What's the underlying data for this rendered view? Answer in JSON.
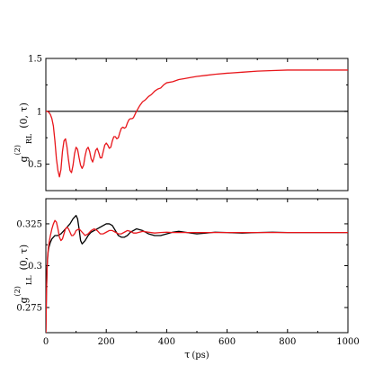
{
  "chart_data": [
    {
      "type": "line",
      "panel": "top",
      "ylabel": {
        "base": "g",
        "sup": "(2)",
        "sub": "RL",
        "args": "(0, τ)"
      },
      "xlim": [
        0,
        1000
      ],
      "ylim": [
        0.25,
        1.5
      ],
      "yticks": [
        0.5,
        1,
        1.5
      ],
      "ytick_labels": [
        "0.5",
        "1",
        "1.5"
      ],
      "xticks": [
        0,
        200,
        400,
        600,
        800,
        1000
      ],
      "grid": false,
      "reference_line": {
        "y": 1,
        "color": "#000000"
      },
      "series": [
        {
          "color": "#e8161b",
          "x": [
            0,
            5,
            10,
            15,
            20,
            25,
            30,
            35,
            40,
            45,
            50,
            55,
            60,
            65,
            70,
            75,
            80,
            85,
            90,
            95,
            100,
            105,
            110,
            115,
            120,
            125,
            130,
            135,
            140,
            145,
            150,
            155,
            160,
            165,
            170,
            175,
            180,
            185,
            190,
            195,
            200,
            205,
            210,
            215,
            220,
            225,
            230,
            235,
            240,
            245,
            250,
            255,
            260,
            265,
            270,
            275,
            280,
            285,
            290,
            295,
            300,
            310,
            320,
            330,
            340,
            350,
            360,
            370,
            380,
            390,
            400,
            420,
            440,
            460,
            480,
            500,
            530,
            560,
            600,
            650,
            700,
            750,
            800,
            850,
            900,
            950,
            1000
          ],
          "y": [
            1.0,
            1.0,
            0.99,
            0.97,
            0.93,
            0.86,
            0.72,
            0.55,
            0.44,
            0.38,
            0.45,
            0.62,
            0.72,
            0.74,
            0.66,
            0.54,
            0.44,
            0.42,
            0.49,
            0.6,
            0.66,
            0.64,
            0.56,
            0.49,
            0.46,
            0.49,
            0.58,
            0.64,
            0.66,
            0.62,
            0.55,
            0.52,
            0.57,
            0.63,
            0.65,
            0.61,
            0.56,
            0.56,
            0.62,
            0.68,
            0.7,
            0.68,
            0.65,
            0.66,
            0.72,
            0.76,
            0.76,
            0.74,
            0.75,
            0.8,
            0.84,
            0.85,
            0.84,
            0.85,
            0.89,
            0.92,
            0.93,
            0.93,
            0.94,
            0.97,
            1.0,
            1.05,
            1.09,
            1.11,
            1.14,
            1.16,
            1.19,
            1.21,
            1.22,
            1.25,
            1.27,
            1.28,
            1.3,
            1.31,
            1.32,
            1.33,
            1.34,
            1.35,
            1.36,
            1.37,
            1.38,
            1.385,
            1.39,
            1.39,
            1.39,
            1.39,
            1.39
          ]
        }
      ]
    },
    {
      "type": "line",
      "panel": "bottom",
      "xlabel": {
        "base": "τ",
        "unit": "(ps)"
      },
      "ylabel": {
        "base": "g",
        "sup": "(2)",
        "sub": "LL",
        "args": "(0, τ)"
      },
      "xlim": [
        0,
        1000
      ],
      "ylim": [
        0.26,
        0.34
      ],
      "yticks": [
        0.275,
        0.3,
        0.325
      ],
      "ytick_labels": [
        "0.275",
        "0.3",
        "0.325"
      ],
      "xticks": [
        0,
        200,
        400,
        600,
        800,
        1000
      ],
      "xtick_labels": [
        "0",
        "200",
        "400",
        "600",
        "800",
        "1000"
      ],
      "grid": false,
      "series": [
        {
          "color": "#000000",
          "x": [
            0,
            2,
            4,
            6,
            8,
            10,
            15,
            20,
            25,
            30,
            40,
            50,
            60,
            70,
            80,
            90,
            100,
            105,
            110,
            115,
            120,
            130,
            140,
            150,
            160,
            170,
            180,
            190,
            200,
            210,
            220,
            230,
            240,
            250,
            260,
            270,
            280,
            290,
            300,
            320,
            340,
            360,
            380,
            400,
            420,
            440,
            460,
            480,
            500,
            530,
            560,
            600,
            650,
            700,
            750,
            800,
            850,
            900,
            950,
            1000
          ],
          "y": [
            0.261,
            0.285,
            0.298,
            0.305,
            0.309,
            0.311,
            0.314,
            0.316,
            0.317,
            0.318,
            0.318,
            0.319,
            0.321,
            0.323,
            0.325,
            0.328,
            0.33,
            0.328,
            0.322,
            0.315,
            0.313,
            0.315,
            0.318,
            0.32,
            0.321,
            0.322,
            0.323,
            0.324,
            0.325,
            0.325,
            0.324,
            0.321,
            0.318,
            0.317,
            0.317,
            0.318,
            0.32,
            0.321,
            0.322,
            0.321,
            0.319,
            0.318,
            0.318,
            0.319,
            0.32,
            0.3205,
            0.32,
            0.3195,
            0.319,
            0.3195,
            0.32,
            0.3198,
            0.3195,
            0.3198,
            0.32,
            0.3198,
            0.3198,
            0.3198,
            0.3198,
            0.3198
          ]
        },
        {
          "color": "#e8161b",
          "x": [
            0,
            2,
            4,
            6,
            8,
            10,
            15,
            20,
            25,
            30,
            35,
            40,
            45,
            50,
            55,
            60,
            65,
            70,
            75,
            80,
            85,
            90,
            95,
            100,
            110,
            120,
            130,
            140,
            150,
            160,
            170,
            180,
            190,
            200,
            210,
            220,
            230,
            240,
            250,
            260,
            270,
            280,
            290,
            300,
            320,
            340,
            360,
            380,
            400,
            420,
            440,
            460,
            480,
            500,
            530,
            560,
            600,
            650,
            700,
            750,
            800,
            850,
            900,
            950,
            1000
          ],
          "y": [
            0.258,
            0.283,
            0.298,
            0.306,
            0.31,
            0.313,
            0.318,
            0.322,
            0.325,
            0.327,
            0.326,
            0.322,
            0.317,
            0.315,
            0.316,
            0.319,
            0.322,
            0.323,
            0.322,
            0.32,
            0.318,
            0.318,
            0.319,
            0.321,
            0.322,
            0.32,
            0.318,
            0.319,
            0.321,
            0.322,
            0.321,
            0.319,
            0.319,
            0.32,
            0.321,
            0.321,
            0.32,
            0.319,
            0.319,
            0.32,
            0.321,
            0.3205,
            0.3195,
            0.3195,
            0.3205,
            0.32,
            0.3195,
            0.3198,
            0.32,
            0.3198,
            0.3198,
            0.3198,
            0.3198,
            0.3198,
            0.3198,
            0.3198,
            0.3198,
            0.3198,
            0.3198,
            0.3198,
            0.3198,
            0.3198,
            0.3198,
            0.3198,
            0.3198
          ]
        }
      ]
    }
  ]
}
